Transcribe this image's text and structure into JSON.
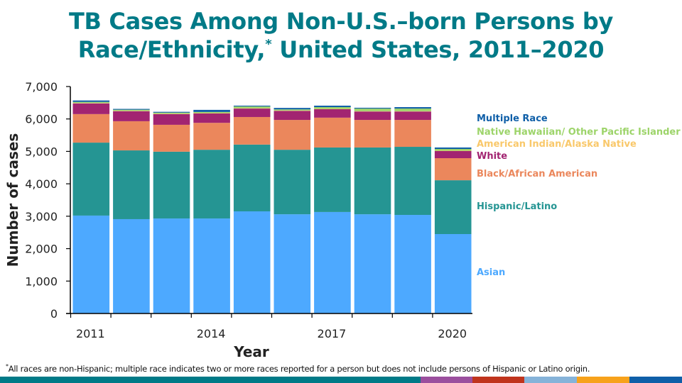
{
  "title": {
    "line1": "TB Cases Among Non-U.S.–born Persons by",
    "line2_main": "Race/Ethnicity,",
    "line2_sup": "*",
    "line2_rest": " United States, 2011–2020"
  },
  "footnote": {
    "marker": "*",
    "text": "All races are non-Hispanic; multiple race indicates two or more races reported for a person but does not include persons of Hispanic or Latino origin."
  },
  "footer_stripe_colors": [
    "#007a87",
    "#9b4f9e",
    "#c0341d",
    "#86b3d9",
    "#f7a21b",
    "#0f5fa8"
  ],
  "chart_data": {
    "type": "bar",
    "stacked": true,
    "title": "TB Cases Among Non-U.S.–born Persons by Race/Ethnicity, United States, 2011–2020",
    "xlabel": "Year",
    "ylabel": "Number of cases",
    "ylim": [
      0,
      7000
    ],
    "yticks": [
      0,
      1000,
      2000,
      3000,
      4000,
      5000,
      6000,
      7000
    ],
    "ytick_labels": [
      "0",
      "1,000",
      "2,000",
      "3,000",
      "4,000",
      "5,000",
      "6,000",
      "7,000"
    ],
    "categories": [
      "2011",
      "2012",
      "2013",
      "2014",
      "2015",
      "2016",
      "2017",
      "2018",
      "2019",
      "2020"
    ],
    "xtick_labels_shown": [
      "2011",
      "2014",
      "2017",
      "2020"
    ],
    "grid": false,
    "legend_position": "right",
    "series": [
      {
        "name": "Asian",
        "color": "#4da9ff",
        "values": [
          3020,
          2910,
          2930,
          2930,
          3150,
          3060,
          3130,
          3060,
          3040,
          2450
        ]
      },
      {
        "name": "Hispanic/Latino",
        "color": "#259593",
        "values": [
          2250,
          2120,
          2060,
          2120,
          2060,
          1990,
          1990,
          2060,
          2100,
          1660
        ]
      },
      {
        "name": "Black/African  American",
        "color": "#eb875c",
        "values": [
          880,
          900,
          830,
          830,
          850,
          920,
          920,
          850,
          830,
          680
        ]
      },
      {
        "name": "White",
        "color": "#a22471",
        "values": [
          330,
          310,
          330,
          290,
          260,
          280,
          260,
          260,
          260,
          220
        ]
      },
      {
        "name": "American Indian/Alaska  Native",
        "color": "#f9c86a",
        "values": [
          10,
          10,
          10,
          10,
          10,
          10,
          10,
          10,
          10,
          10
        ]
      },
      {
        "name": "Native Hawaiian/ Other Pacific Islander",
        "color": "#9dd46a",
        "values": [
          35,
          35,
          35,
          35,
          55,
          35,
          55,
          80,
          80,
          55
        ]
      },
      {
        "name": "Multiple Race",
        "color": "#0f5fa8",
        "values": [
          45,
          25,
          25,
          65,
          25,
          45,
          45,
          25,
          45,
          45
        ]
      }
    ]
  },
  "legend": [
    {
      "label": "Multiple Race",
      "color": "#0f5fa8"
    },
    {
      "label": "Native Hawaiian/ Other Pacific Islander",
      "color": "#9dd46a"
    },
    {
      "label": "American Indian/Alaska  Native",
      "color": "#f9c86a"
    },
    {
      "label": "White",
      "color": "#a22471"
    },
    {
      "label": "Black/African  American",
      "color": "#eb875c"
    },
    {
      "label": "Hispanic/Latino",
      "color": "#259593"
    },
    {
      "label": "Asian",
      "color": "#4da9ff"
    }
  ]
}
